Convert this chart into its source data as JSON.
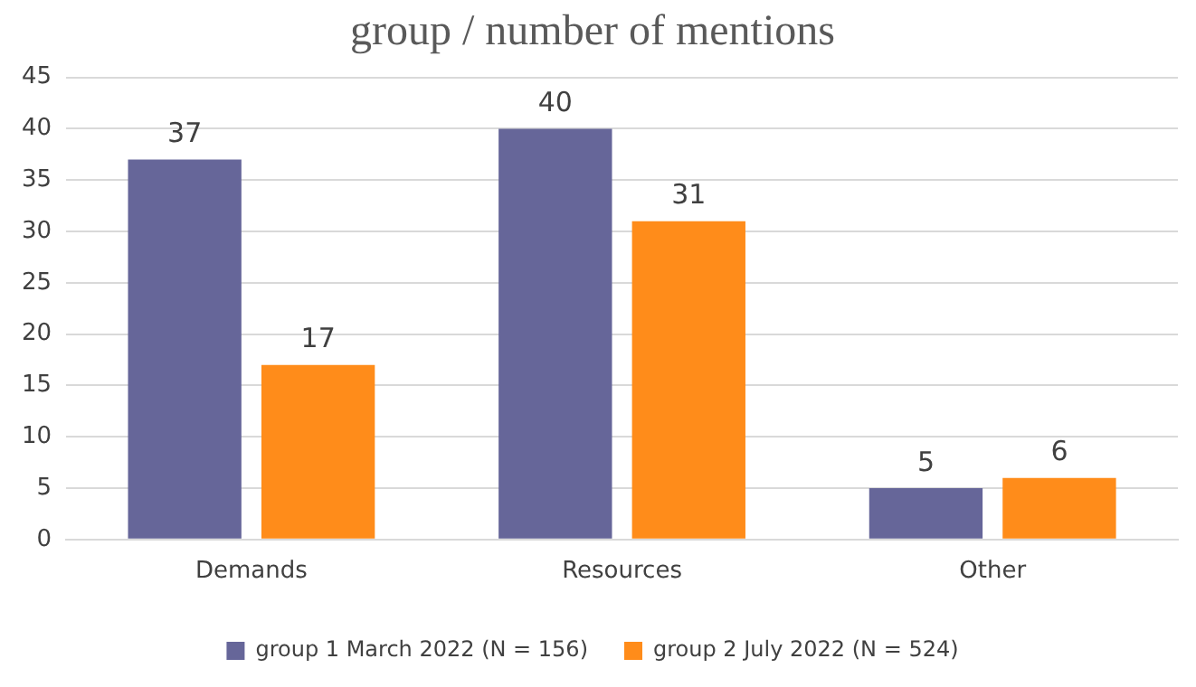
{
  "chart_data": {
    "type": "bar",
    "title": "group / number of mentions",
    "categories": [
      "Demands",
      "Resources",
      "Other"
    ],
    "series": [
      {
        "name": "group 1 March 2022 (N = 156)",
        "color": "#666699",
        "values": [
          37,
          40,
          5
        ]
      },
      {
        "name": "group 2 July 2022 (N = 524)",
        "color": "#ff8c1a",
        "values": [
          17,
          31,
          6
        ]
      }
    ],
    "ylim": [
      0,
      45
    ],
    "yticks": [
      0,
      5,
      10,
      15,
      20,
      25,
      30,
      35,
      40,
      45
    ],
    "grid": "y",
    "legend": "bottom",
    "data_labels": true
  }
}
